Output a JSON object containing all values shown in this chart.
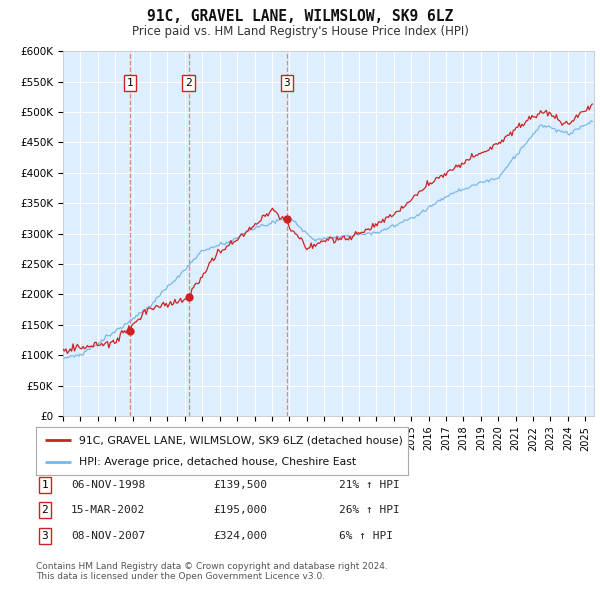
{
  "title": "91C, GRAVEL LANE, WILMSLOW, SK9 6LZ",
  "subtitle": "Price paid vs. HM Land Registry's House Price Index (HPI)",
  "ylabel_ticks": [
    "£0",
    "£50K",
    "£100K",
    "£150K",
    "£200K",
    "£250K",
    "£300K",
    "£350K",
    "£400K",
    "£450K",
    "£500K",
    "£550K",
    "£600K"
  ],
  "ylim": [
    0,
    600000
  ],
  "ytick_values": [
    0,
    50000,
    100000,
    150000,
    200000,
    250000,
    300000,
    350000,
    400000,
    450000,
    500000,
    550000,
    600000
  ],
  "xlim_start": 1995.0,
  "xlim_end": 2025.5,
  "plot_bg_color": "#ddeeff",
  "grid_color": "#ffffff",
  "sale_dates": [
    1998.85,
    2002.21,
    2007.86
  ],
  "sale_prices": [
    139500,
    195000,
    324000
  ],
  "sale_labels": [
    "1",
    "2",
    "3"
  ],
  "sale_date_strs": [
    "06-NOV-1998",
    "15-MAR-2002",
    "08-NOV-2007"
  ],
  "sale_price_strs": [
    "£139,500",
    "£195,000",
    "£324,000"
  ],
  "sale_hpi_strs": [
    "21% ↑ HPI",
    "26% ↑ HPI",
    "6% ↑ HPI"
  ],
  "hpi_line_color": "#7ab8e8",
  "price_line_color": "#cc2222",
  "vline_color": "#dd7777",
  "legend_label_price": "91C, GRAVEL LANE, WILMSLOW, SK9 6LZ (detached house)",
  "legend_label_hpi": "HPI: Average price, detached house, Cheshire East",
  "footnote": "Contains HM Land Registry data © Crown copyright and database right 2024.\nThis data is licensed under the Open Government Licence v3.0."
}
